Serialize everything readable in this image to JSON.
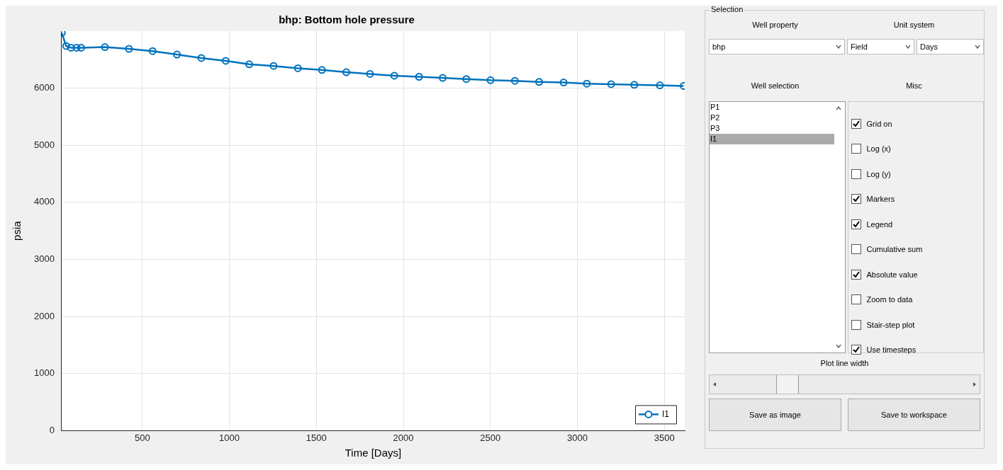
{
  "chart_data": [
    {
      "type": "line",
      "title": "bhp: Bottom hole pressure",
      "xlabel": "Time [Days]",
      "ylabel": "psia",
      "x": [
        37,
        62,
        90,
        122,
        148,
        285,
        423,
        559,
        699,
        839,
        979,
        1114,
        1254,
        1394,
        1532,
        1672,
        1808,
        1948,
        2090,
        2226,
        2362,
        2501,
        2641,
        2780,
        2921,
        3054,
        3194,
        3327,
        3474,
        3611
      ],
      "series": [
        {
          "name": "I1",
          "color": "#0072bd",
          "values": [
            6970,
            6740,
            6710,
            6710,
            6710,
            6720,
            6690,
            6650,
            6590,
            6530,
            6480,
            6420,
            6390,
            6350,
            6320,
            6280,
            6250,
            6220,
            6200,
            6180,
            6160,
            6140,
            6130,
            6110,
            6100,
            6080,
            6070,
            6060,
            6050,
            6040
          ]
        }
      ],
      "xlim": [
        36,
        3617
      ],
      "xticks": [
        500,
        1000,
        1500,
        2000,
        2500,
        3000,
        3500
      ],
      "ylim": [
        0,
        7000
      ],
      "yticks": [
        0,
        1000,
        2000,
        3000,
        4000,
        5000,
        6000
      ],
      "grid": true,
      "legend": "bottom right",
      "marker": "circle",
      "line_style": "solid"
    },
    {
      "type": "other",
      "title": "Selection",
      "annotations": [
        "Well property",
        "Unit system",
        "bhp",
        "Field",
        "Days",
        "Well selection",
        "Misc",
        "P1",
        "P2",
        "P3",
        "I1",
        "Grid on",
        "Log (x)",
        "Log (y)",
        "Markers",
        "Legend",
        "Cumulative sum",
        "Absolute value",
        "Zoom to data",
        "Stair-step plot",
        "Use timesteps",
        "Plot line width",
        "Save as image",
        "Save to workspace"
      ]
    }
  ]
}
